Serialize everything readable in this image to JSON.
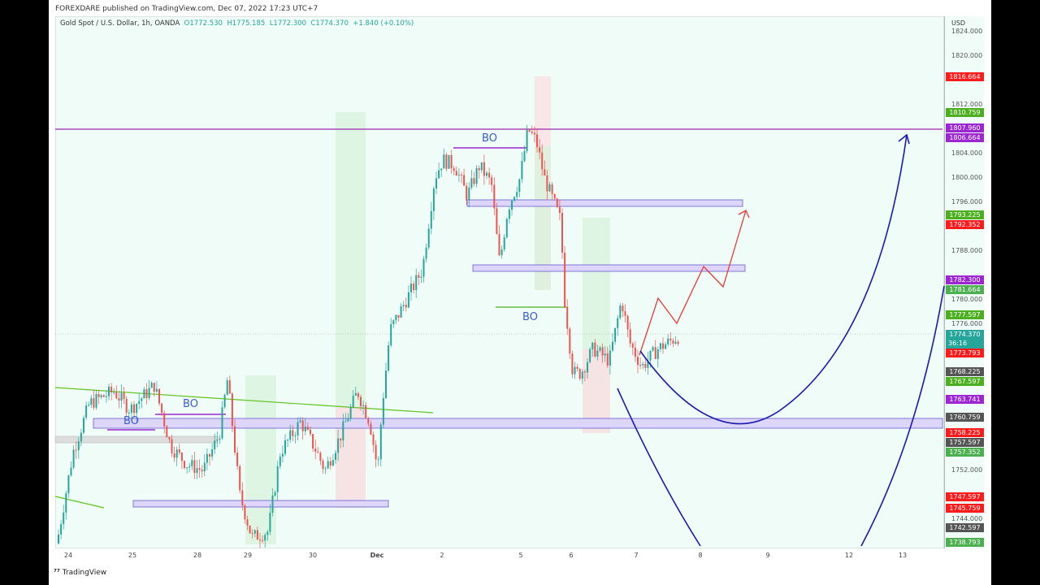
{
  "header": {
    "published": "FOREXDARE published on TradingView.com, Dec 07, 2022 17:23 UTC+7"
  },
  "legend": {
    "symbol": "Gold Spot / U.S. Dollar, 1h, OANDA",
    "open": "O1772.530",
    "high": "H1775.185",
    "low": "L1772.300",
    "close": "C1774.370",
    "change": "+1.840 (+0.10%)"
  },
  "axis": {
    "currency": "USD",
    "ticks": [
      "1824.000",
      "1820.000",
      "1812.000",
      "1804.000",
      "1800.000",
      "1796.000",
      "1788.000",
      "1780.000",
      "1776.000",
      "1752.000",
      "1744.000"
    ]
  },
  "price_labels": [
    {
      "text": "1816.664",
      "color": "#ff1b1b"
    },
    {
      "text": "1810.759",
      "color": "#4caf1f"
    },
    {
      "text": "1807.960",
      "color": "#9c27d0"
    },
    {
      "text": "1806.664",
      "color": "#9c27d0"
    },
    {
      "text": "1793.225",
      "color": "#4caf1f"
    },
    {
      "text": "1792.352",
      "color": "#ff1b1b"
    },
    {
      "text": "1782.300",
      "color": "#9c27d0"
    },
    {
      "text": "1781.664",
      "color": "#4caf50"
    },
    {
      "text": "1777.597",
      "color": "#4caf1f"
    },
    {
      "text": "1774.370",
      "color": "#26a69a"
    },
    {
      "text": "1773.793",
      "color": "#ff1b1b"
    },
    {
      "text": "1768.225",
      "color": "#555555"
    },
    {
      "text": "1767.597",
      "color": "#4caf1f"
    },
    {
      "text": "1763.741",
      "color": "#9c27d0"
    },
    {
      "text": "1760.759",
      "color": "#555555"
    },
    {
      "text": "1758.225",
      "color": "#ff1b1b"
    },
    {
      "text": "1757.597",
      "color": "#555555"
    },
    {
      "text": "1757.352",
      "color": "#4caf50"
    },
    {
      "text": "1747.597",
      "color": "#ff1b1b"
    },
    {
      "text": "1745.759",
      "color": "#ff1b1b"
    },
    {
      "text": "1742.597",
      "color": "#555555"
    },
    {
      "text": "1738.793",
      "color": "#4caf50"
    }
  ],
  "countdown": "36:16",
  "dates": [
    "24",
    "25",
    "28",
    "29",
    "30",
    "Dec",
    "2",
    "5",
    "6",
    "7",
    "8",
    "9",
    "12",
    "13"
  ],
  "annotations": [
    "BO",
    "BO",
    "BO",
    "BO"
  ],
  "colors": {
    "up": "#26a69a",
    "down": "#ef5350",
    "background": "#effcf8"
  },
  "footer": {
    "brand": "TradingView"
  }
}
